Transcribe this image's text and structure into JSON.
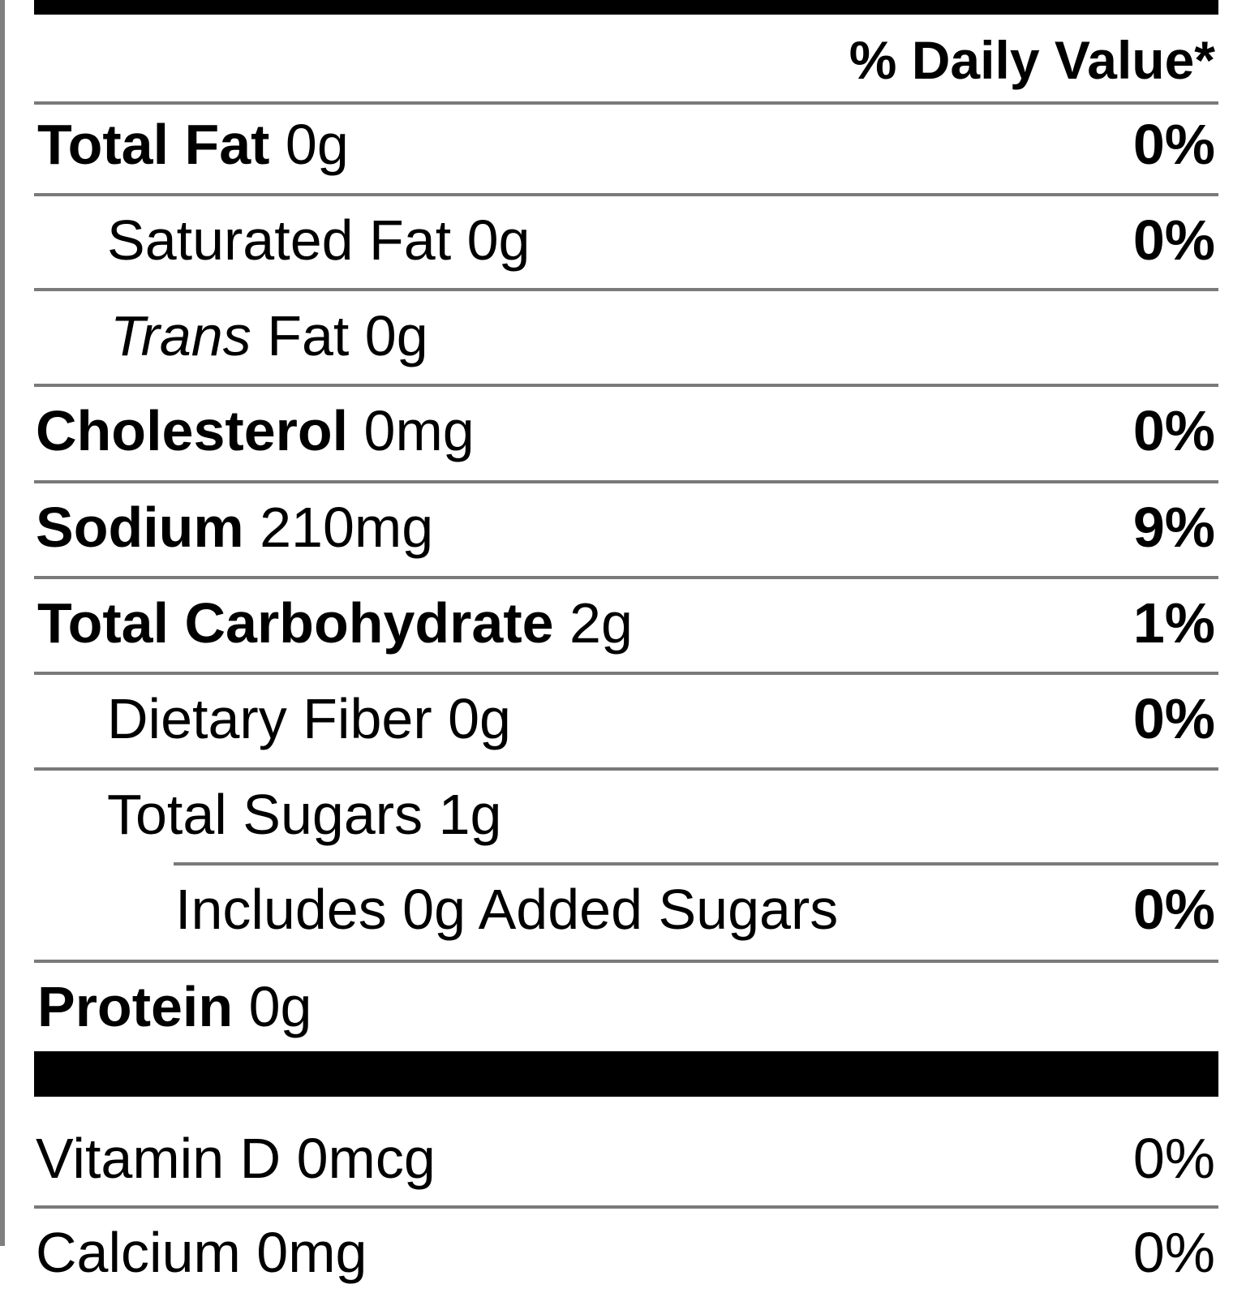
{
  "header": {
    "daily_value": "% Daily Value*"
  },
  "rows": {
    "total_fat": {
      "name": "Total Fat",
      "amount": "0g",
      "dv": "0%"
    },
    "saturated_fat": {
      "name": "Saturated Fat",
      "amount": "0g",
      "dv": "0%"
    },
    "trans_fat": {
      "name_italic": "Trans",
      "name_rest": "Fat",
      "amount": "0g"
    },
    "cholesterol": {
      "name": "Cholesterol",
      "amount": "0mg",
      "dv": "0%"
    },
    "sodium": {
      "name": "Sodium",
      "amount": "210mg",
      "dv": "9%"
    },
    "total_carbohydrate": {
      "name": "Total Carbohydrate",
      "amount": "2g",
      "dv": "1%"
    },
    "dietary_fiber": {
      "name": "Dietary Fiber",
      "amount": "0g",
      "dv": "0%"
    },
    "total_sugars": {
      "name": "Total Sugars",
      "amount": "1g"
    },
    "added_sugars": {
      "label": "Includes 0g Added Sugars",
      "dv": "0%"
    },
    "protein": {
      "name": "Protein",
      "amount": "0g"
    },
    "vitamin_d": {
      "label": "Vitamin D 0mcg",
      "dv": "0%"
    },
    "calcium": {
      "label": "Calcium 0mg",
      "dv": "0%"
    }
  }
}
